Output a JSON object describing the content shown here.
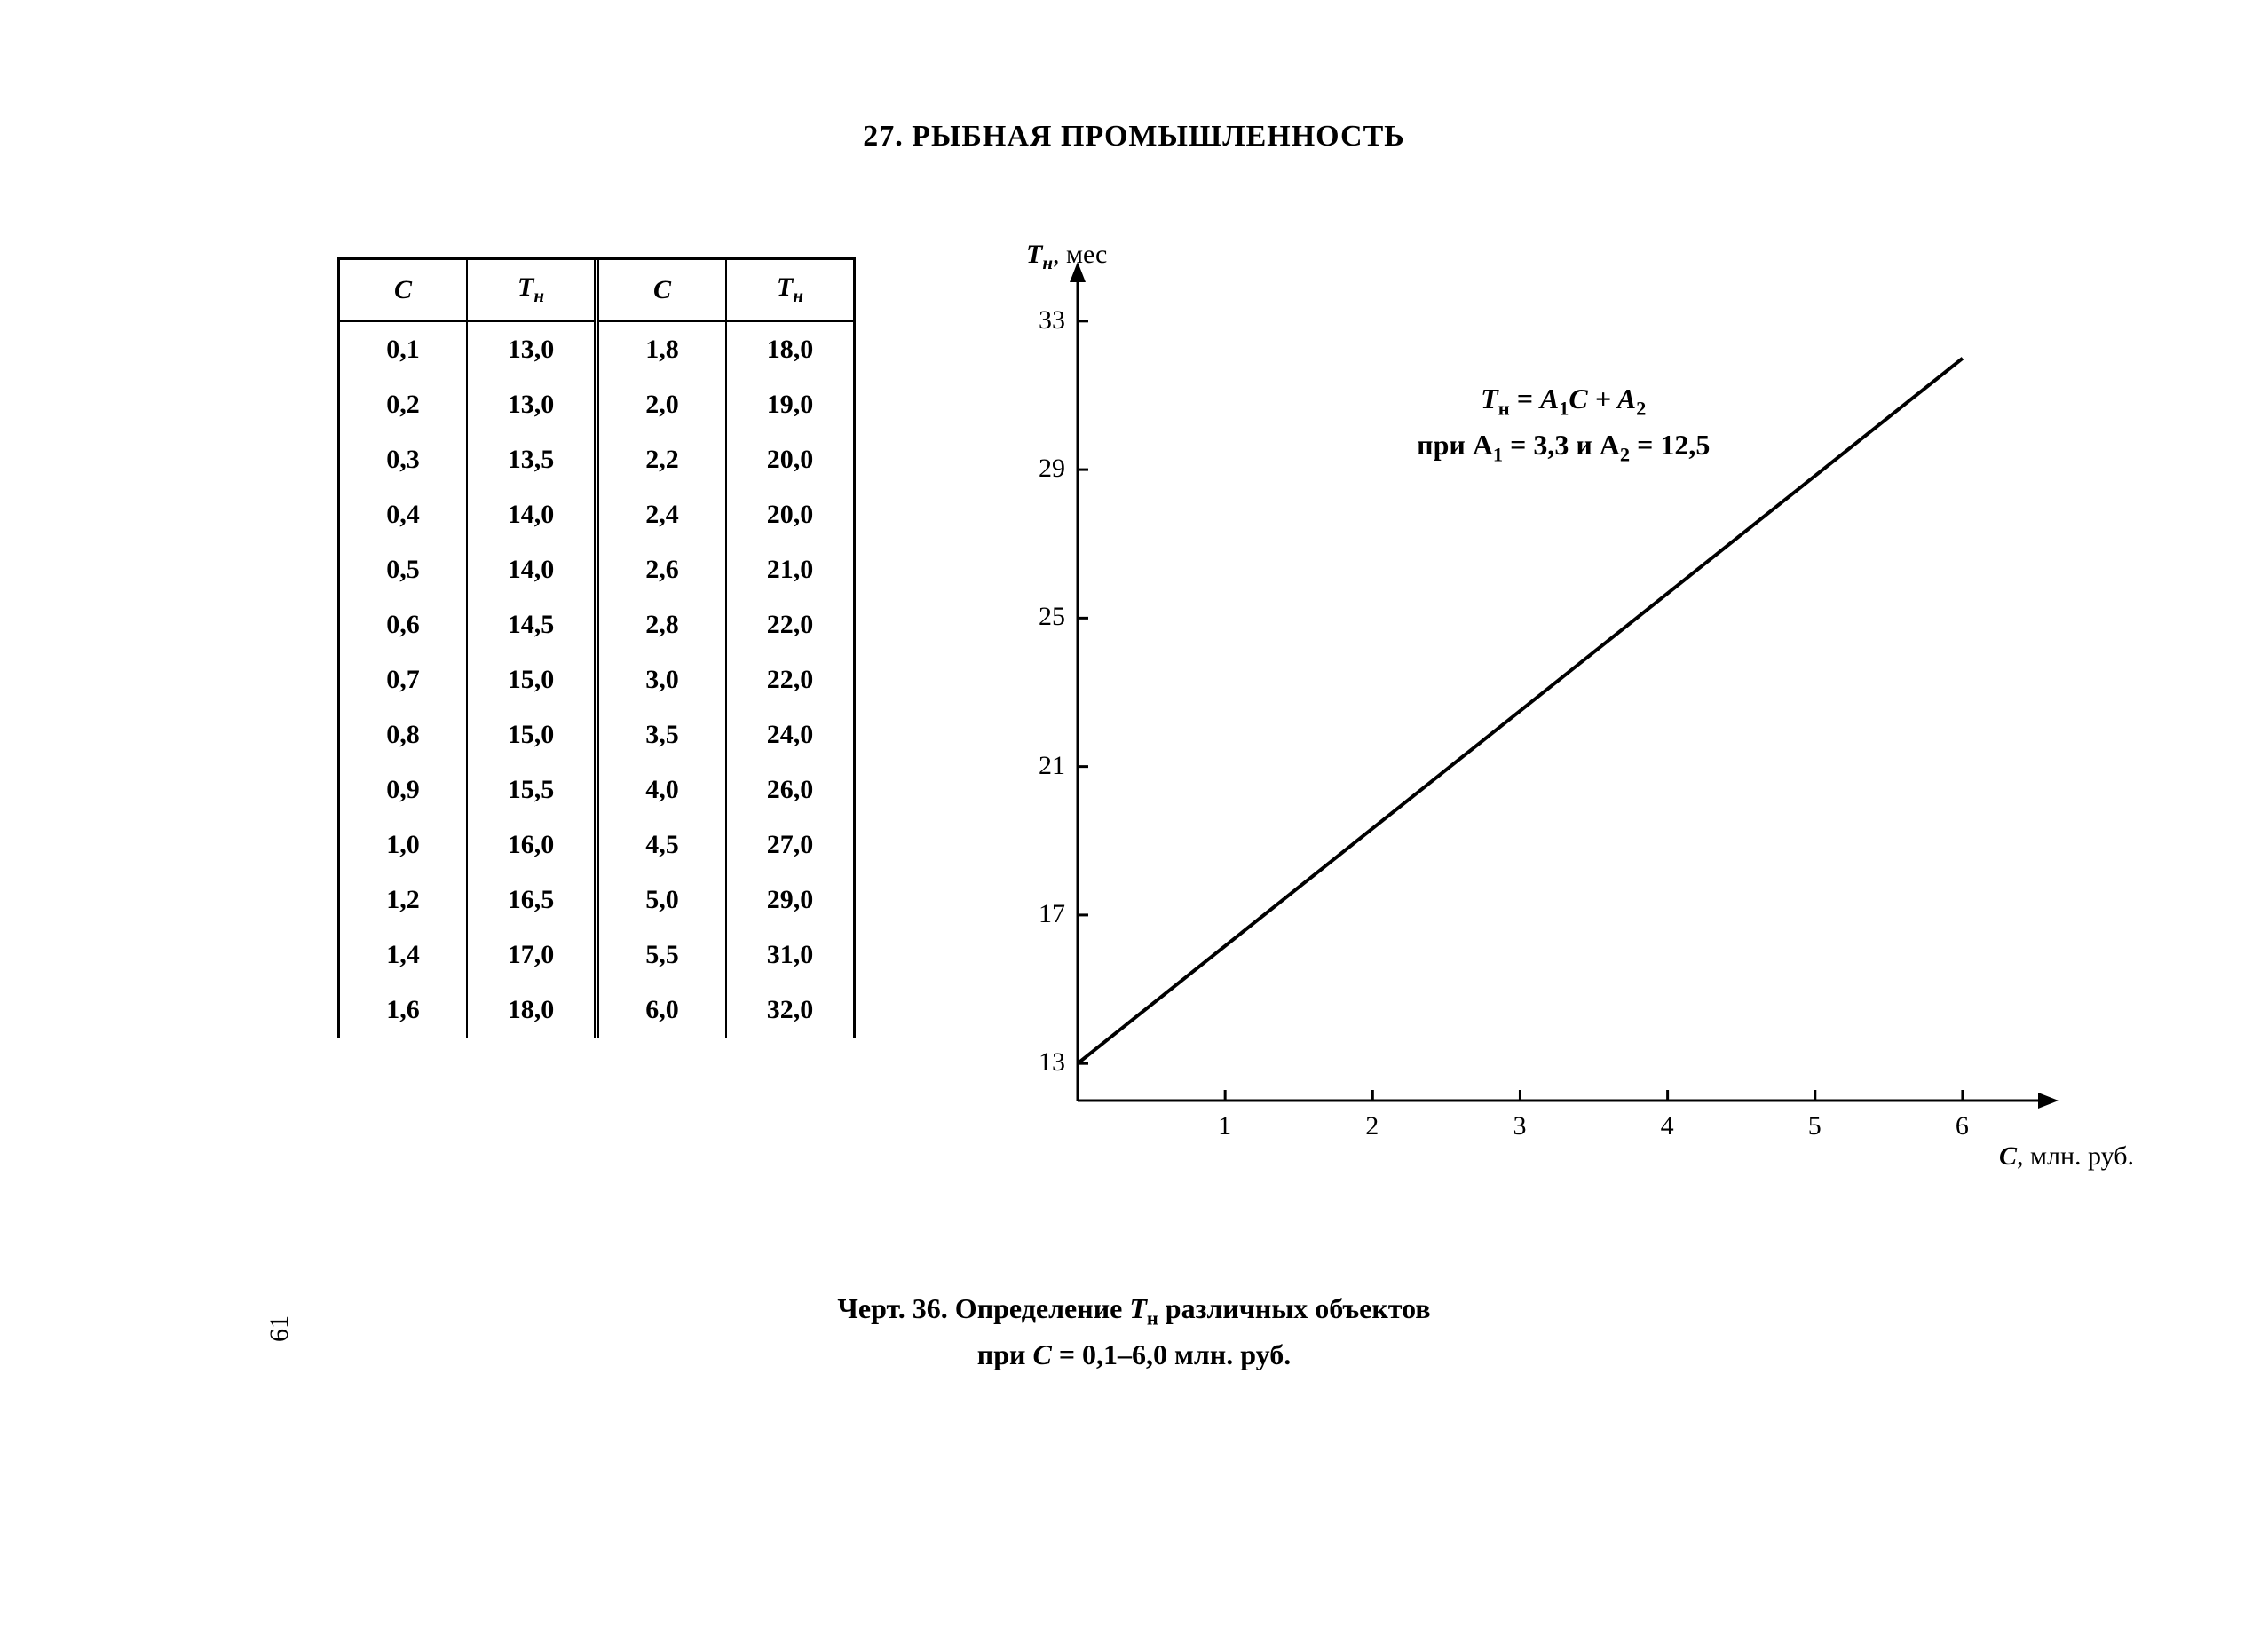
{
  "section_title": "27. РЫБНАЯ ПРОМЫШЛЕННОСТЬ",
  "page_number": "61",
  "table": {
    "headers": {
      "c": "C",
      "t": "T",
      "t_sub": "н"
    },
    "rows_left": [
      [
        "0,1",
        "13,0"
      ],
      [
        "0,2",
        "13,0"
      ],
      [
        "0,3",
        "13,5"
      ],
      [
        "0,4",
        "14,0"
      ],
      [
        "0,5",
        "14,0"
      ],
      [
        "0,6",
        "14,5"
      ],
      [
        "0,7",
        "15,0"
      ],
      [
        "0,8",
        "15,0"
      ],
      [
        "0,9",
        "15,5"
      ],
      [
        "1,0",
        "16,0"
      ],
      [
        "1,2",
        "16,5"
      ],
      [
        "1,4",
        "17,0"
      ],
      [
        "1,6",
        "18,0"
      ]
    ],
    "rows_right": [
      [
        "1,8",
        "18,0"
      ],
      [
        "2,0",
        "19,0"
      ],
      [
        "2,2",
        "20,0"
      ],
      [
        "2,4",
        "20,0"
      ],
      [
        "2,6",
        "21,0"
      ],
      [
        "2,8",
        "22,0"
      ],
      [
        "3,0",
        "22,0"
      ],
      [
        "3,5",
        "24,0"
      ],
      [
        "4,0",
        "26,0"
      ],
      [
        "4,5",
        "27,0"
      ],
      [
        "5,0",
        "29,0"
      ],
      [
        "5,5",
        "31,0"
      ],
      [
        "6,0",
        "32,0"
      ]
    ]
  },
  "chart": {
    "type": "line",
    "y_axis_label_var": "T",
    "y_axis_label_sub": "н",
    "y_axis_label_unit": ", мес",
    "x_axis_label_var": "C",
    "x_axis_label_unit": ", млн. руб.",
    "x_ticks": [
      1,
      2,
      3,
      4,
      5,
      6
    ],
    "y_ticks": [
      13,
      17,
      21,
      25,
      29,
      33
    ],
    "xlim": [
      0,
      6.5
    ],
    "ylim": [
      12,
      34
    ],
    "line_color": "#000000",
    "line_width": 4,
    "axis_width": 3,
    "tick_len": 12,
    "background": "#ffffff",
    "formula_line1_pre": "T",
    "formula_line1_sub1": "н",
    "formula_line1_mid": " = A",
    "formula_line1_sub2": "1",
    "formula_line1_mid2": "C + A",
    "formula_line1_sub3": "2",
    "formula_line2_pre": "при A",
    "formula_line2_sub1": "1",
    "formula_line2_mid": " = 3,3  и  A",
    "formula_line2_sub2": "2",
    "formula_line2_end": " = 12,5",
    "data_points": [
      [
        0,
        13
      ],
      [
        6,
        32
      ]
    ]
  },
  "caption": {
    "prefix": "Черт. 36. Определение ",
    "var": "T",
    "var_sub": "н",
    "mid": " различных объектов",
    "line2_pre": "при ",
    "line2_var": "C",
    "line2_rest": " = 0,1–6,0 млн. руб."
  }
}
